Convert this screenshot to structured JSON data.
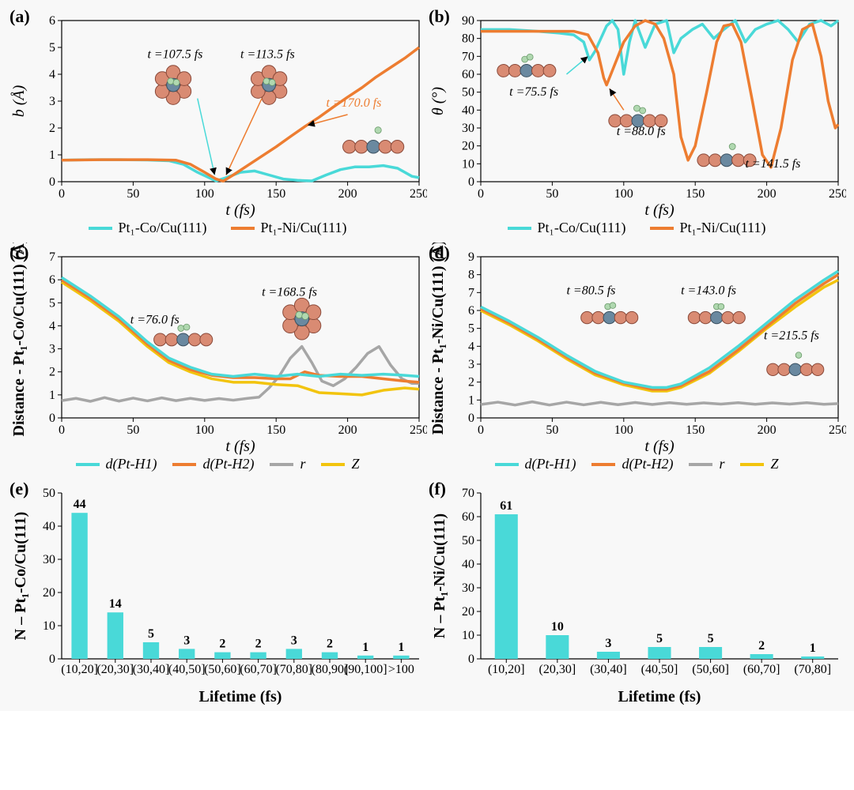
{
  "colors": {
    "cyan": "#49d9d8",
    "orange": "#ed7d31",
    "gray": "#a6a6a6",
    "yellow": "#f2c40e",
    "axis": "#000000",
    "bg": "#f8f8f8",
    "atom_cu": "#d98b73",
    "atom_center": "#6a89a0",
    "atom_h": "#b0d8b0"
  },
  "panel_labels": {
    "a": "(a)",
    "b": "(b)",
    "c": "(c)",
    "d": "(d)",
    "e": "(e)",
    "f": "(f)"
  },
  "legend_ab": {
    "s1": "Pt₁-Co/Cu(111)",
    "s2": "Pt₁-Ni/Cu(111)"
  },
  "legend_cd": {
    "s1": "d(Pt-H1)",
    "s2": "d(Pt-H2)",
    "s3": "r",
    "s4": "Z"
  },
  "a": {
    "xlabel": "t (fs)",
    "ylabel": "b (Å)",
    "xlim": [
      0,
      250
    ],
    "ylim": [
      0,
      6
    ],
    "xticks": [
      0,
      50,
      100,
      150,
      200,
      250
    ],
    "yticks": [
      0,
      1,
      2,
      3,
      4,
      5,
      6
    ],
    "anno": [
      "t =107.5 fs",
      "t =113.5 fs",
      "t =170.0 fs"
    ],
    "cyan_xy": [
      [
        0,
        0.8
      ],
      [
        20,
        0.82
      ],
      [
        40,
        0.82
      ],
      [
        60,
        0.81
      ],
      [
        75,
        0.78
      ],
      [
        85,
        0.65
      ],
      [
        95,
        0.35
      ],
      [
        105,
        0.1
      ],
      [
        108,
        0.03
      ],
      [
        115,
        0.15
      ],
      [
        125,
        0.35
      ],
      [
        135,
        0.4
      ],
      [
        145,
        0.25
      ],
      [
        155,
        0.1
      ],
      [
        165,
        0.05
      ],
      [
        175,
        0.03
      ],
      [
        185,
        0.25
      ],
      [
        195,
        0.45
      ],
      [
        205,
        0.55
      ],
      [
        215,
        0.55
      ],
      [
        225,
        0.6
      ],
      [
        235,
        0.5
      ],
      [
        245,
        0.2
      ],
      [
        250,
        0.15
      ]
    ],
    "orange_xy": [
      [
        0,
        0.8
      ],
      [
        30,
        0.82
      ],
      [
        60,
        0.82
      ],
      [
        80,
        0.8
      ],
      [
        90,
        0.65
      ],
      [
        100,
        0.35
      ],
      [
        108,
        0.1
      ],
      [
        113,
        0.02
      ],
      [
        120,
        0.25
      ],
      [
        130,
        0.6
      ],
      [
        140,
        0.95
      ],
      [
        150,
        1.3
      ],
      [
        160,
        1.68
      ],
      [
        170,
        2.05
      ],
      [
        180,
        2.4
      ],
      [
        190,
        2.78
      ],
      [
        200,
        3.15
      ],
      [
        210,
        3.5
      ],
      [
        220,
        3.9
      ],
      [
        230,
        4.25
      ],
      [
        240,
        4.6
      ],
      [
        250,
        5.0
      ]
    ]
  },
  "b": {
    "xlabel": "t (fs)",
    "ylabel": "θ (°)",
    "xlim": [
      0,
      250
    ],
    "ylim": [
      0,
      90
    ],
    "xticks": [
      0,
      50,
      100,
      150,
      200,
      250
    ],
    "yticks": [
      0,
      10,
      20,
      30,
      40,
      50,
      60,
      70,
      80,
      90
    ],
    "anno": [
      "t =75.5 fs",
      "t =88.0 fs",
      "t =141.5 fs"
    ],
    "cyan_xy": [
      [
        0,
        85
      ],
      [
        20,
        85
      ],
      [
        40,
        84
      ],
      [
        55,
        83
      ],
      [
        65,
        82
      ],
      [
        72,
        78
      ],
      [
        76,
        68
      ],
      [
        80,
        73
      ],
      [
        84,
        80
      ],
      [
        88,
        87
      ],
      [
        92,
        90
      ],
      [
        96,
        85
      ],
      [
        100,
        60
      ],
      [
        104,
        78
      ],
      [
        108,
        90
      ],
      [
        115,
        75
      ],
      [
        122,
        88
      ],
      [
        130,
        90
      ],
      [
        135,
        72
      ],
      [
        140,
        80
      ],
      [
        148,
        85
      ],
      [
        155,
        88
      ],
      [
        163,
        80
      ],
      [
        170,
        85
      ],
      [
        178,
        90
      ],
      [
        185,
        78
      ],
      [
        192,
        85
      ],
      [
        200,
        88
      ],
      [
        208,
        90
      ],
      [
        215,
        85
      ],
      [
        222,
        78
      ],
      [
        230,
        88
      ],
      [
        238,
        90
      ],
      [
        245,
        87
      ],
      [
        250,
        90
      ]
    ],
    "orange_xy": [
      [
        0,
        84
      ],
      [
        30,
        84
      ],
      [
        50,
        84
      ],
      [
        65,
        84
      ],
      [
        75,
        82
      ],
      [
        82,
        72
      ],
      [
        86,
        58
      ],
      [
        88,
        54
      ],
      [
        92,
        62
      ],
      [
        100,
        78
      ],
      [
        108,
        87
      ],
      [
        115,
        90
      ],
      [
        122,
        88
      ],
      [
        128,
        80
      ],
      [
        135,
        60
      ],
      [
        140,
        25
      ],
      [
        145,
        12
      ],
      [
        150,
        20
      ],
      [
        158,
        50
      ],
      [
        165,
        78
      ],
      [
        170,
        87
      ],
      [
        176,
        88
      ],
      [
        182,
        78
      ],
      [
        190,
        45
      ],
      [
        197,
        15
      ],
      [
        203,
        8
      ],
      [
        210,
        30
      ],
      [
        218,
        68
      ],
      [
        225,
        85
      ],
      [
        232,
        88
      ],
      [
        238,
        70
      ],
      [
        243,
        45
      ],
      [
        248,
        30
      ],
      [
        250,
        32
      ]
    ]
  },
  "c": {
    "xlabel": "t (fs)",
    "ylabel": "Distance - Pt₁-Co/Cu(111) (Å)",
    "xlim": [
      0,
      250
    ],
    "ylim": [
      0,
      7
    ],
    "xticks": [
      0,
      50,
      100,
      150,
      200,
      250
    ],
    "yticks": [
      0,
      1,
      2,
      3,
      4,
      5,
      6,
      7
    ],
    "anno": [
      "t =76.0 fs",
      "t =168.5 fs"
    ],
    "cyan_xy": [
      [
        0,
        6.1
      ],
      [
        20,
        5.3
      ],
      [
        40,
        4.4
      ],
      [
        60,
        3.3
      ],
      [
        75,
        2.6
      ],
      [
        90,
        2.2
      ],
      [
        105,
        1.9
      ],
      [
        120,
        1.8
      ],
      [
        135,
        1.9
      ],
      [
        150,
        1.8
      ],
      [
        165,
        1.9
      ],
      [
        180,
        1.8
      ],
      [
        195,
        1.9
      ],
      [
        210,
        1.85
      ],
      [
        225,
        1.9
      ],
      [
        240,
        1.85
      ],
      [
        250,
        1.8
      ]
    ],
    "orange_xy": [
      [
        0,
        6.0
      ],
      [
        20,
        5.2
      ],
      [
        40,
        4.3
      ],
      [
        60,
        3.2
      ],
      [
        75,
        2.5
      ],
      [
        90,
        2.1
      ],
      [
        105,
        1.85
      ],
      [
        120,
        1.75
      ],
      [
        135,
        1.75
      ],
      [
        150,
        1.7
      ],
      [
        160,
        1.7
      ],
      [
        170,
        2.0
      ],
      [
        180,
        1.85
      ],
      [
        195,
        1.8
      ],
      [
        210,
        1.8
      ],
      [
        225,
        1.7
      ],
      [
        240,
        1.6
      ],
      [
        250,
        1.55
      ]
    ],
    "gray_xy": [
      [
        0,
        0.75
      ],
      [
        10,
        0.85
      ],
      [
        20,
        0.72
      ],
      [
        30,
        0.88
      ],
      [
        40,
        0.73
      ],
      [
        50,
        0.86
      ],
      [
        60,
        0.74
      ],
      [
        70,
        0.87
      ],
      [
        80,
        0.75
      ],
      [
        90,
        0.85
      ],
      [
        100,
        0.76
      ],
      [
        110,
        0.84
      ],
      [
        120,
        0.77
      ],
      [
        130,
        0.85
      ],
      [
        138,
        0.9
      ],
      [
        145,
        1.3
      ],
      [
        152,
        1.8
      ],
      [
        160,
        2.6
      ],
      [
        168,
        3.1
      ],
      [
        175,
        2.4
      ],
      [
        182,
        1.6
      ],
      [
        190,
        1.4
      ],
      [
        198,
        1.7
      ],
      [
        206,
        2.2
      ],
      [
        214,
        2.8
      ],
      [
        222,
        3.1
      ],
      [
        230,
        2.3
      ],
      [
        238,
        1.7
      ],
      [
        245,
        1.5
      ],
      [
        250,
        1.5
      ]
    ],
    "yellow_xy": [
      [
        0,
        5.9
      ],
      [
        20,
        5.1
      ],
      [
        40,
        4.2
      ],
      [
        60,
        3.1
      ],
      [
        75,
        2.4
      ],
      [
        90,
        2.0
      ],
      [
        105,
        1.7
      ],
      [
        120,
        1.55
      ],
      [
        135,
        1.55
      ],
      [
        150,
        1.45
      ],
      [
        165,
        1.4
      ],
      [
        180,
        1.1
      ],
      [
        195,
        1.05
      ],
      [
        210,
        1.0
      ],
      [
        225,
        1.2
      ],
      [
        240,
        1.3
      ],
      [
        250,
        1.25
      ]
    ]
  },
  "d": {
    "xlabel": "t (fs)",
    "ylabel": "Distance - Pt₁-Ni/Cu(111) (Å)",
    "xlim": [
      0,
      250
    ],
    "ylim": [
      0,
      9
    ],
    "xticks": [
      0,
      50,
      100,
      150,
      200,
      250
    ],
    "yticks": [
      0,
      1,
      2,
      3,
      4,
      5,
      6,
      7,
      8,
      9
    ],
    "anno": [
      "t =80.5 fs",
      "t =143.0 fs",
      "t =215.5 fs"
    ],
    "cyan_xy": [
      [
        0,
        6.2
      ],
      [
        20,
        5.4
      ],
      [
        40,
        4.5
      ],
      [
        60,
        3.5
      ],
      [
        80,
        2.6
      ],
      [
        100,
        2.0
      ],
      [
        120,
        1.7
      ],
      [
        130,
        1.7
      ],
      [
        140,
        1.9
      ],
      [
        160,
        2.8
      ],
      [
        180,
        4.0
      ],
      [
        200,
        5.3
      ],
      [
        220,
        6.6
      ],
      [
        240,
        7.7
      ],
      [
        250,
        8.2
      ]
    ],
    "orange_xy": [
      [
        0,
        6.1
      ],
      [
        20,
        5.3
      ],
      [
        40,
        4.4
      ],
      [
        60,
        3.4
      ],
      [
        80,
        2.5
      ],
      [
        100,
        1.95
      ],
      [
        120,
        1.6
      ],
      [
        130,
        1.6
      ],
      [
        140,
        1.8
      ],
      [
        160,
        2.6
      ],
      [
        180,
        3.8
      ],
      [
        200,
        5.1
      ],
      [
        220,
        6.4
      ],
      [
        240,
        7.5
      ],
      [
        250,
        8.0
      ]
    ],
    "yellow_xy": [
      [
        0,
        6.0
      ],
      [
        20,
        5.2
      ],
      [
        40,
        4.3
      ],
      [
        60,
        3.3
      ],
      [
        80,
        2.4
      ],
      [
        100,
        1.85
      ],
      [
        120,
        1.5
      ],
      [
        130,
        1.5
      ],
      [
        140,
        1.7
      ],
      [
        160,
        2.5
      ],
      [
        180,
        3.7
      ],
      [
        200,
        5.0
      ],
      [
        220,
        6.2
      ],
      [
        240,
        7.3
      ],
      [
        250,
        7.7
      ]
    ],
    "gray_xy": [
      [
        0,
        0.75
      ],
      [
        12,
        0.88
      ],
      [
        24,
        0.72
      ],
      [
        36,
        0.9
      ],
      [
        48,
        0.72
      ],
      [
        60,
        0.88
      ],
      [
        72,
        0.73
      ],
      [
        84,
        0.87
      ],
      [
        96,
        0.74
      ],
      [
        108,
        0.86
      ],
      [
        120,
        0.75
      ],
      [
        132,
        0.85
      ],
      [
        144,
        0.76
      ],
      [
        156,
        0.84
      ],
      [
        168,
        0.77
      ],
      [
        180,
        0.85
      ],
      [
        192,
        0.76
      ],
      [
        204,
        0.84
      ],
      [
        216,
        0.77
      ],
      [
        228,
        0.85
      ],
      [
        240,
        0.76
      ],
      [
        250,
        0.8
      ]
    ]
  },
  "e": {
    "xlabel": "Lifetime (fs)",
    "ylabel": "N – Pt₁-Co/Cu(111)",
    "ylim": [
      0,
      50
    ],
    "yticks": [
      0,
      10,
      20,
      30,
      40,
      50
    ],
    "cats": [
      "(10,20]",
      "(20,30]",
      "(30,40]",
      "(40,50]",
      "(50,60]",
      "(60,70]",
      "(70,80]",
      "(80,90]",
      "(90,100]",
      ">100"
    ],
    "vals": [
      44,
      14,
      5,
      3,
      2,
      2,
      3,
      2,
      1,
      1
    ]
  },
  "f": {
    "xlabel": "Lifetime (fs)",
    "ylabel": "N – Pt₁-Ni/Cu(111)",
    "ylim": [
      0,
      70
    ],
    "yticks": [
      0,
      10,
      20,
      30,
      40,
      50,
      60,
      70
    ],
    "cats": [
      "(10,20]",
      "(20,30]",
      "(30,40]",
      "(40,50]",
      "(50,60]",
      "(60,70]",
      "(70,80]"
    ],
    "vals": [
      61,
      10,
      3,
      5,
      5,
      2,
      1
    ]
  }
}
